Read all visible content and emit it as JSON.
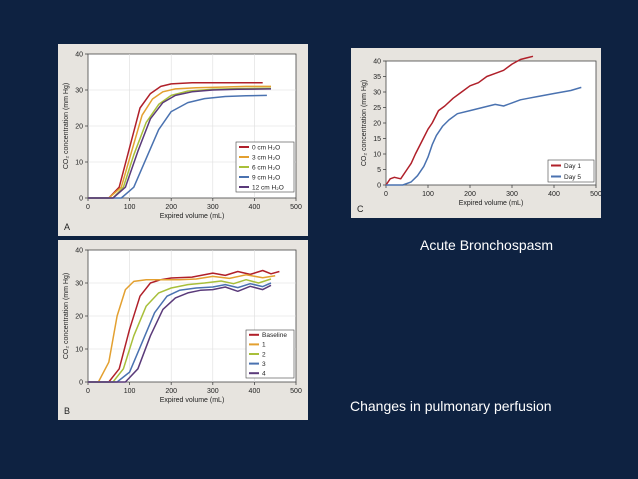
{
  "captions": {
    "top_right": "Acute Bronchospasm",
    "bottom_right": "Changes in pulmonary perfusion"
  },
  "chart_data": [
    {
      "id": "A",
      "panel_letter": "A",
      "type": "line",
      "xlabel": "Expired volume (mL)",
      "ylabel": "CO₂ concentration (mm Hg)",
      "xlim": [
        0,
        500
      ],
      "ylim": [
        0,
        40
      ],
      "xticks": [
        0,
        100,
        200,
        300,
        400,
        500
      ],
      "yticks": [
        0,
        10,
        20,
        30,
        40
      ],
      "grid": true,
      "legend_position": "bottom-right",
      "series": [
        {
          "name": "0 cm H₂O",
          "color": "#b0202a",
          "x": [
            0,
            50,
            75,
            100,
            125,
            150,
            175,
            200,
            250,
            300,
            350,
            420
          ],
          "y": [
            0,
            0,
            3,
            14,
            25,
            29,
            31,
            31.7,
            32,
            32,
            32,
            32
          ]
        },
        {
          "name": "3 cm H₂O",
          "color": "#e3a030",
          "x": [
            0,
            50,
            80,
            105,
            130,
            155,
            180,
            210,
            260,
            320,
            380,
            440
          ],
          "y": [
            0,
            0,
            3,
            13,
            23,
            27.5,
            29.5,
            30.3,
            30.6,
            30.8,
            31,
            31
          ]
        },
        {
          "name": "6 cm H₂O",
          "color": "#a8bf3a",
          "x": [
            0,
            60,
            85,
            110,
            140,
            170,
            200,
            240,
            300,
            360,
            440
          ],
          "y": [
            0,
            0,
            3,
            12,
            21,
            26,
            28.5,
            29.7,
            30.2,
            30.4,
            30.5
          ]
        },
        {
          "name": "9 cm H₂O",
          "color": "#4a72b0",
          "x": [
            0,
            80,
            110,
            140,
            170,
            200,
            240,
            280,
            330,
            380,
            430
          ],
          "y": [
            0,
            0,
            3,
            11,
            19,
            24,
            26.5,
            27.6,
            28.2,
            28.4,
            28.5
          ]
        },
        {
          "name": "12 cm H₂O",
          "color": "#5a3a7a",
          "x": [
            0,
            60,
            90,
            120,
            150,
            180,
            210,
            250,
            300,
            360,
            440
          ],
          "y": [
            0,
            0,
            3,
            13,
            22,
            26.5,
            28.5,
            29.5,
            30,
            30.2,
            30.3
          ]
        }
      ]
    },
    {
      "id": "B",
      "panel_letter": "B",
      "type": "line",
      "xlabel": "Expired volume (mL)",
      "ylabel": "CO₂ concentration (mm Hg)",
      "xlim": [
        0,
        500
      ],
      "ylim": [
        0,
        40
      ],
      "xticks": [
        0,
        100,
        200,
        300,
        400,
        500
      ],
      "yticks": [
        0,
        10,
        20,
        30,
        40
      ],
      "grid": true,
      "legend_position": "bottom-right",
      "series": [
        {
          "name": "Baseline",
          "color": "#b0202a",
          "x": [
            0,
            50,
            75,
            100,
            125,
            150,
            175,
            200,
            250,
            300,
            330,
            360,
            390,
            420,
            440,
            460
          ],
          "y": [
            0,
            0,
            4,
            16,
            26,
            30,
            31,
            31.5,
            31.8,
            33,
            32.3,
            33.5,
            32.6,
            33.8,
            32.8,
            33.5
          ]
        },
        {
          "name": "1",
          "color": "#e3a030",
          "x": [
            0,
            25,
            50,
            70,
            90,
            110,
            140,
            180,
            220,
            260,
            300,
            340,
            380,
            420,
            450
          ],
          "y": [
            0,
            0,
            6,
            20,
            28,
            30.5,
            31,
            31,
            31,
            31.2,
            32,
            31.4,
            32.5,
            31.6,
            32.2
          ]
        },
        {
          "name": "2",
          "color": "#a8bf3a",
          "x": [
            0,
            60,
            85,
            110,
            140,
            170,
            200,
            240,
            280,
            320,
            350,
            380,
            410,
            440
          ],
          "y": [
            0,
            0,
            4,
            14,
            23,
            27,
            28.5,
            29.5,
            30,
            30.6,
            29.8,
            31,
            30,
            31.2
          ]
        },
        {
          "name": "3",
          "color": "#4a72b0",
          "x": [
            0,
            70,
            100,
            130,
            160,
            190,
            220,
            260,
            300,
            330,
            360,
            390,
            420,
            440
          ],
          "y": [
            0,
            0,
            3,
            12,
            21,
            26,
            27.8,
            28.5,
            28.8,
            29.5,
            28.6,
            29.8,
            28.9,
            30
          ]
        },
        {
          "name": "4",
          "color": "#5a3a7a",
          "x": [
            0,
            90,
            120,
            150,
            180,
            210,
            240,
            270,
            300,
            330,
            360,
            390,
            420,
            440
          ],
          "y": [
            0,
            0,
            4,
            14,
            22,
            25.5,
            27,
            27.8,
            28,
            28.8,
            27.5,
            29,
            28,
            29.3
          ]
        }
      ]
    },
    {
      "id": "C",
      "panel_letter": "C",
      "type": "line",
      "xlabel": "Expired volume (mL)",
      "ylabel": "CO₂ concentration (mm Hg)",
      "xlim": [
        0,
        500
      ],
      "ylim": [
        0,
        40
      ],
      "xticks": [
        0,
        100,
        200,
        300,
        400,
        500
      ],
      "yticks": [
        0,
        5,
        10,
        15,
        20,
        25,
        30,
        35,
        40
      ],
      "grid": false,
      "legend_position": "bottom-right",
      "series": [
        {
          "name": "Day 1",
          "color": "#b0202a",
          "x": [
            0,
            10,
            20,
            35,
            50,
            60,
            70,
            85,
            100,
            110,
            125,
            140,
            160,
            180,
            200,
            220,
            240,
            260,
            280,
            300,
            320,
            335,
            350
          ],
          "y": [
            0,
            2,
            2.5,
            2,
            5,
            7,
            10,
            14,
            18,
            20,
            24,
            25.5,
            28,
            30,
            32,
            33,
            35,
            36,
            37,
            39,
            40.5,
            41,
            41.5
          ]
        },
        {
          "name": "Day 5",
          "color": "#4a72b0",
          "x": [
            0,
            20,
            40,
            60,
            75,
            90,
            100,
            110,
            120,
            135,
            150,
            170,
            200,
            230,
            260,
            280,
            300,
            320,
            340,
            360,
            400,
            440,
            465
          ],
          "y": [
            0,
            0,
            0,
            1,
            3,
            6,
            9,
            13,
            16,
            19,
            21,
            23,
            24,
            25,
            26,
            25.5,
            26.5,
            27.5,
            28,
            28.5,
            29.5,
            30.5,
            31.5
          ]
        }
      ]
    }
  ]
}
